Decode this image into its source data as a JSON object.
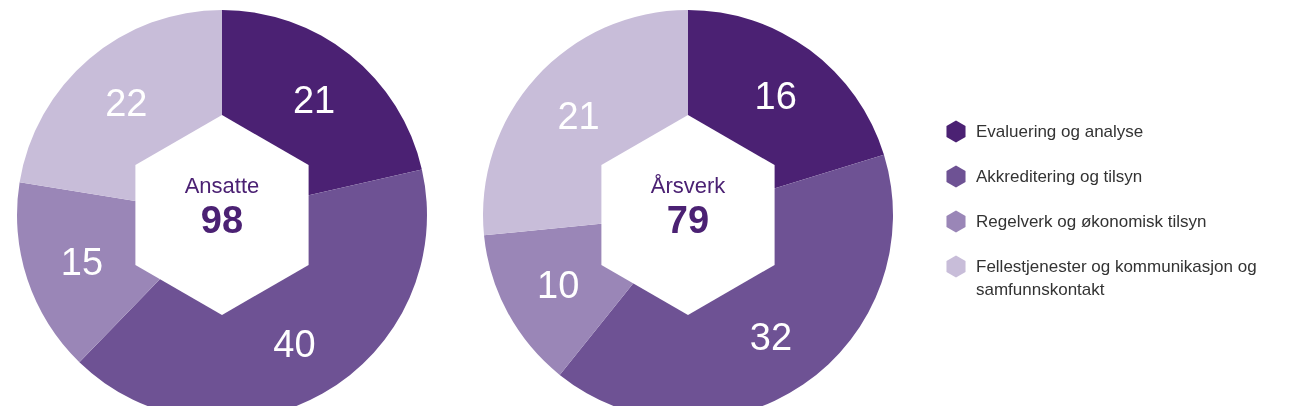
{
  "chart_data": [
    {
      "type": "donut",
      "title": "Ansatte",
      "annotations": [
        "98"
      ],
      "categories": [
        null,
        null,
        null,
        null
      ],
      "values": [
        21,
        40,
        15,
        22
      ],
      "colors": [
        "#4b2173",
        "#6e5294",
        "#9a86b7",
        "#c8bdd9"
      ],
      "data_labels": true,
      "legend": false
    },
    {
      "type": "donut",
      "title": "Årsverk",
      "annotations": [
        "79"
      ],
      "categories": [
        "Evaluering og analyse",
        "Akkreditering og tilsyn",
        "Regelverk og økonomisk tilsyn",
        "Fellestjenester og kommunikasjon og samfunnskontakt"
      ],
      "values": [
        16,
        32,
        10,
        21
      ],
      "colors": [
        "#4b2173",
        "#6e5294",
        "#9a86b7",
        "#c8bdd9"
      ],
      "data_labels": true,
      "legend": "right"
    }
  ]
}
